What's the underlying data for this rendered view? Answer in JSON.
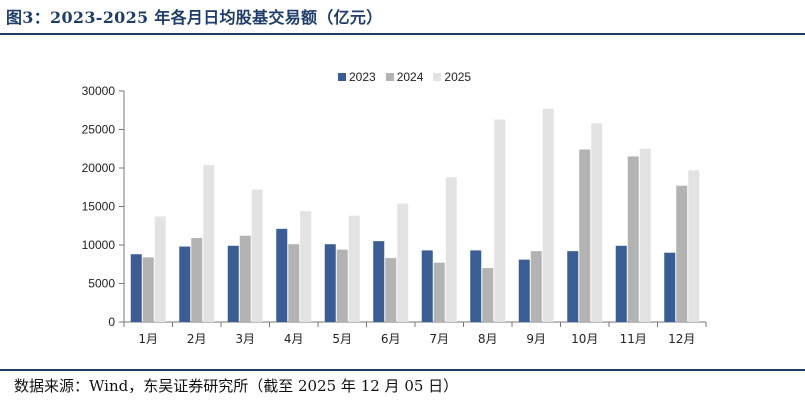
{
  "figure_title": "图3：2023-2025 年各月日均股基交易额（亿元）",
  "source_note": "数据来源：Wind，东吴证券研究所（截至 2025 年 12 月 05 日）",
  "colors": {
    "2023": "#3a5e94",
    "2024": "#b3b3b3",
    "2025": "#e3e3e3",
    "accent": "#1f3d6b"
  },
  "chart_data": {
    "type": "bar",
    "categories": [
      "1月",
      "2月",
      "3月",
      "4月",
      "5月",
      "6月",
      "7月",
      "8月",
      "9月",
      "10月",
      "11月",
      "12月"
    ],
    "series": [
      {
        "name": "2023",
        "values": [
          8800,
          9800,
          9900,
          12100,
          10100,
          10500,
          9300,
          9300,
          8100,
          9200,
          9900,
          9000
        ]
      },
      {
        "name": "2024",
        "values": [
          8400,
          10900,
          11200,
          10100,
          9400,
          8300,
          7700,
          7000,
          9200,
          22400,
          21500,
          17700
        ]
      },
      {
        "name": "2025",
        "values": [
          13700,
          20400,
          17200,
          14400,
          13800,
          15400,
          18800,
          26300,
          27700,
          25800,
          22500,
          19700
        ]
      }
    ],
    "ylim": [
      0,
      30000
    ],
    "yticks": [
      "0",
      "5000",
      "10000",
      "15000",
      "20000",
      "25000",
      "30000"
    ],
    "legend_position": "top-center",
    "grid": false
  }
}
